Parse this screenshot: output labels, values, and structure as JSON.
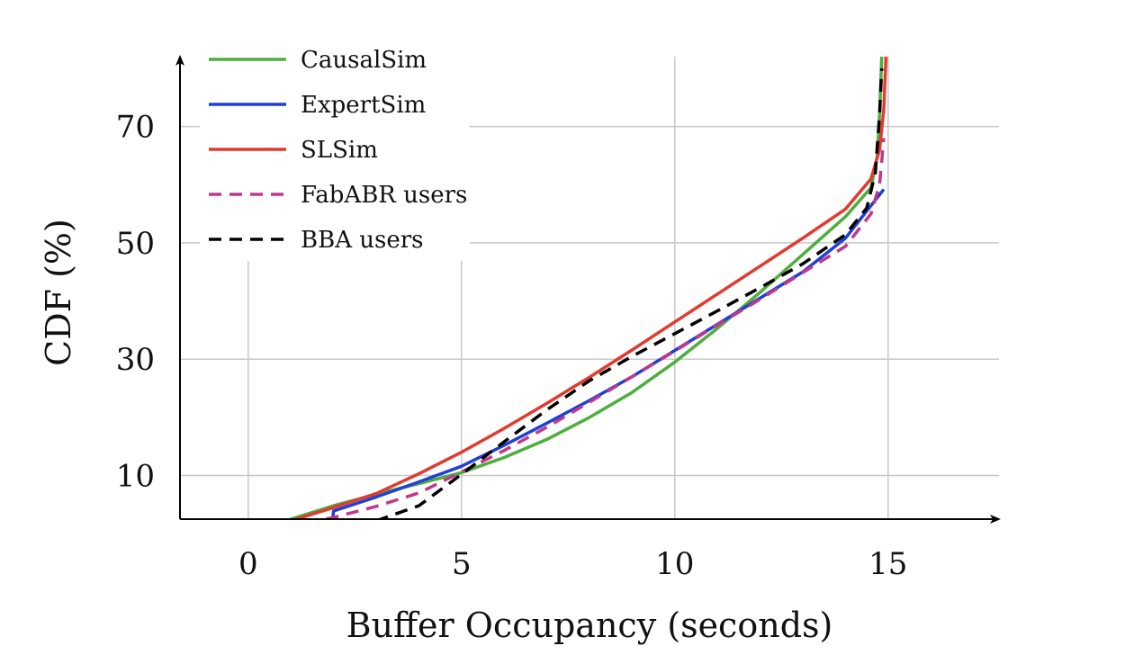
{
  "chart_data": {
    "type": "line",
    "title": "",
    "xlabel": "Buffer Occupancy (seconds)",
    "ylabel": "CDF (%)",
    "xlim": [
      -1.6,
      17.6
    ],
    "ylim": [
      2.5,
      82
    ],
    "xticks": [
      "0",
      "5",
      "10",
      "15"
    ],
    "xtick_values": [
      0,
      5,
      10,
      15
    ],
    "yticks": [
      "10",
      "30",
      "50",
      "70"
    ],
    "ytick_values": [
      10,
      30,
      50,
      70
    ],
    "grid": true,
    "legend_position": "top-left",
    "series": [
      {
        "name": "CausalSim",
        "color": "#4caf3c",
        "dash": "solid",
        "points": [
          [
            0.8,
            1.5
          ],
          [
            1.0,
            2.5
          ],
          [
            2,
            4.8
          ],
          [
            3,
            6.8
          ],
          [
            4,
            8.6
          ],
          [
            5,
            10.5
          ],
          [
            6,
            13.1
          ],
          [
            7,
            16.2
          ],
          [
            8,
            20.0
          ],
          [
            9,
            24.3
          ],
          [
            10,
            29.5
          ],
          [
            11,
            35.3
          ],
          [
            12,
            41.5
          ],
          [
            13,
            48.0
          ],
          [
            14,
            54.5
          ],
          [
            14.6,
            59.5
          ],
          [
            14.75,
            65
          ],
          [
            14.8,
            72
          ],
          [
            14.85,
            82
          ]
        ]
      },
      {
        "name": "ExpertSim",
        "color": "#1f3fd8",
        "dash": "solid",
        "points": [
          [
            0.2,
            0.1
          ],
          [
            1.95,
            0.1
          ],
          [
            2.0,
            3.9
          ],
          [
            3,
            6.3
          ],
          [
            4,
            8.9
          ],
          [
            5,
            11.6
          ],
          [
            6,
            15.2
          ],
          [
            7,
            19.0
          ],
          [
            8,
            22.9
          ],
          [
            9,
            27.0
          ],
          [
            10,
            31.5
          ],
          [
            11,
            36.0
          ],
          [
            12,
            40.5
          ],
          [
            13,
            45.0
          ],
          [
            14,
            50.8
          ],
          [
            14.9,
            59.2
          ]
        ]
      },
      {
        "name": "SLSim",
        "color": "#e23a2e",
        "dash": "solid",
        "points": [
          [
            -1.6,
            0.1
          ],
          [
            0.5,
            0.1
          ],
          [
            0.8,
            1.4
          ],
          [
            1.0,
            2.2
          ],
          [
            2,
            4.5
          ],
          [
            3,
            6.9
          ],
          [
            4,
            10.3
          ],
          [
            5,
            14.0
          ],
          [
            6,
            18.1
          ],
          [
            7,
            22.4
          ],
          [
            8,
            26.9
          ],
          [
            9,
            31.6
          ],
          [
            10,
            36.4
          ],
          [
            11,
            41.2
          ],
          [
            12,
            46.0
          ],
          [
            13,
            50.8
          ],
          [
            14,
            55.8
          ],
          [
            14.6,
            61.0
          ],
          [
            14.8,
            66
          ],
          [
            14.9,
            73
          ],
          [
            14.95,
            82
          ]
        ]
      },
      {
        "name": "FabABR users",
        "color": "#c0388b",
        "dash": "dashed",
        "points": [
          [
            0.4,
            0.4
          ],
          [
            1,
            1.2
          ],
          [
            2,
            2.8
          ],
          [
            3,
            4.7
          ],
          [
            4,
            7.0
          ],
          [
            5,
            10.6
          ],
          [
            6,
            14.3
          ],
          [
            7,
            18.3
          ],
          [
            8,
            22.6
          ],
          [
            9,
            27.0
          ],
          [
            10,
            31.4
          ],
          [
            11,
            35.9
          ],
          [
            12,
            40.3
          ],
          [
            13,
            44.9
          ],
          [
            14,
            49.4
          ],
          [
            14.6,
            55.0
          ],
          [
            14.8,
            60
          ],
          [
            14.9,
            68
          ]
        ]
      },
      {
        "name": "BBA users",
        "color": "#000000",
        "dash": "dashed",
        "points": [
          [
            0.1,
            0.1
          ],
          [
            1.0,
            0.2
          ],
          [
            2,
            1.0
          ],
          [
            3,
            2.2
          ],
          [
            4,
            4.8
          ],
          [
            5,
            10.2
          ],
          [
            6,
            15.8
          ],
          [
            7,
            21.3
          ],
          [
            8,
            26.3
          ],
          [
            9,
            30.5
          ],
          [
            10,
            34.4
          ],
          [
            11,
            38.3
          ],
          [
            12,
            42.3
          ],
          [
            13,
            46.4
          ],
          [
            14,
            51.4
          ],
          [
            14.5,
            56.0
          ],
          [
            14.7,
            62
          ],
          [
            14.8,
            72
          ],
          [
            14.85,
            80
          ]
        ]
      }
    ]
  }
}
